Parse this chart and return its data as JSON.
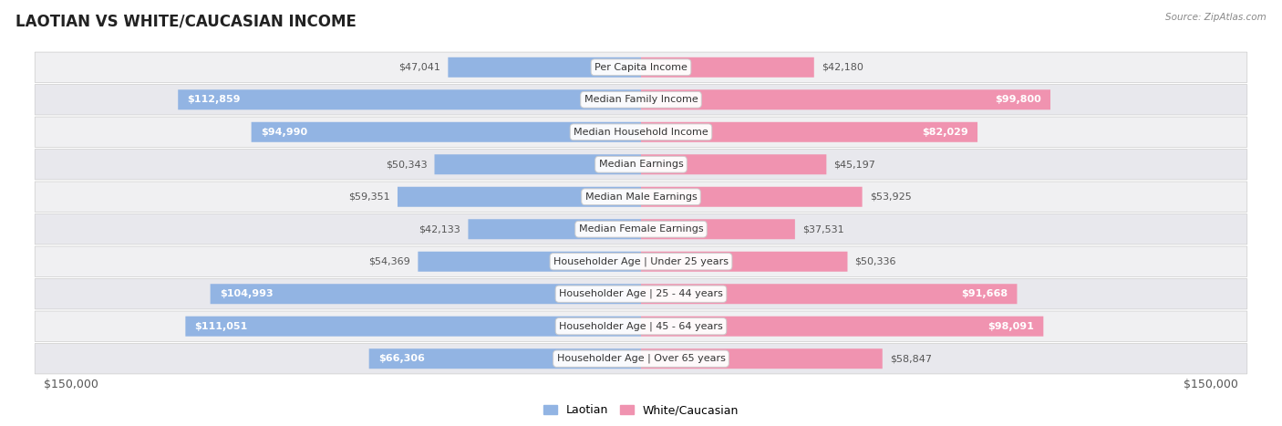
{
  "title": "LAOTIAN VS WHITE/CAUCASIAN INCOME",
  "source": "Source: ZipAtlas.com",
  "categories": [
    "Per Capita Income",
    "Median Family Income",
    "Median Household Income",
    "Median Earnings",
    "Median Male Earnings",
    "Median Female Earnings",
    "Householder Age | Under 25 years",
    "Householder Age | 25 - 44 years",
    "Householder Age | 45 - 64 years",
    "Householder Age | Over 65 years"
  ],
  "laotian_values": [
    47041,
    112859,
    94990,
    50343,
    59351,
    42133,
    54369,
    104993,
    111051,
    66306
  ],
  "white_values": [
    42180,
    99800,
    82029,
    45197,
    53925,
    37531,
    50336,
    91668,
    98091,
    58847
  ],
  "laotian_labels": [
    "$47,041",
    "$112,859",
    "$94,990",
    "$50,343",
    "$59,351",
    "$42,133",
    "$54,369",
    "$104,993",
    "$111,051",
    "$66,306"
  ],
  "white_labels": [
    "$42,180",
    "$99,800",
    "$82,029",
    "$45,197",
    "$53,925",
    "$37,531",
    "$50,336",
    "$91,668",
    "$98,091",
    "$58,847"
  ],
  "max_value": 150000,
  "laotian_color": "#92b4e3",
  "white_color": "#f093b0",
  "row_colors": [
    "#f0f0f2",
    "#e8e8ed"
  ],
  "bar_height": 0.62,
  "xlabel_left": "$150,000",
  "xlabel_right": "$150,000",
  "legend_laotian": "Laotian",
  "legend_white": "White/Caucasian",
  "title_fontsize": 12,
  "label_fontsize": 8,
  "category_fontsize": 8,
  "inside_label_threshold": 65000
}
